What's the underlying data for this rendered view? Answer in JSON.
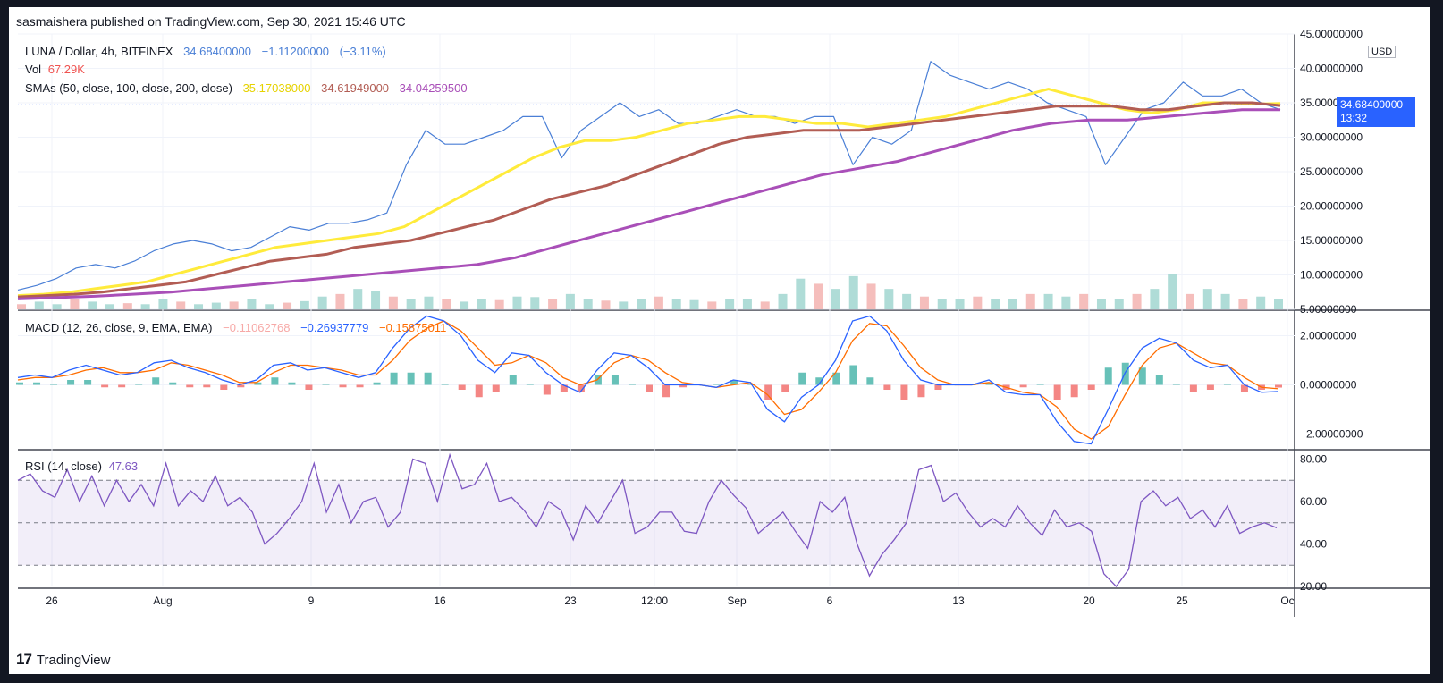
{
  "header": {
    "published": "sasmaishera published on TradingView.com, Sep 30, 2021 15:46 UTC"
  },
  "footer": {
    "brand": "TradingView",
    "brand_mark": "17"
  },
  "main": {
    "symbol": "LUNA / Dollar, 4h, BITFINEX",
    "last": "34.68400000",
    "change": "−1.11200000",
    "change_pct": "(−3.11%)",
    "vol_label": "Vol",
    "vol_value": "67.29K",
    "sma_label": "SMAs (50, close, 100, close, 200, close)",
    "sma50": "35.17038000",
    "sma100": "34.61949000",
    "sma200": "34.04259500",
    "price_tag": "34.68400000",
    "price_tag_time": "13:32",
    "currency": "USD"
  },
  "macd": {
    "label": "MACD (12, 26, close, 9, EMA, EMA)",
    "hist": "−0.11062768",
    "macd": "−0.26937779",
    "signal": "−0.15875011"
  },
  "rsi": {
    "label": "RSI (14, close)",
    "value": "47.63"
  },
  "colors": {
    "price": "#4a7fd6",
    "sma50": "#ffeb3b",
    "sma100": "#b25d54",
    "sma200": "#a94fb8",
    "macd": "#2962ff",
    "signal": "#ff6d00",
    "rsi": "#7e57c2",
    "up": "#26a69a",
    "down": "#ef5350"
  },
  "chart_data": [
    {
      "type": "line",
      "name": "price",
      "x_ticks": [
        "26",
        "Aug",
        "9",
        "16",
        "23",
        "12:00",
        "Sep",
        "6",
        "13",
        "20",
        "25",
        "Oc"
      ],
      "y_ticks": [
        "45.00000000",
        "40.00000000",
        "35.00000000",
        "30.00000000",
        "25.00000000",
        "20.00000000",
        "15.00000000",
        "10.00000000",
        "5.00000000"
      ],
      "ylim": [
        5,
        45
      ],
      "series": [
        {
          "name": "LUNA / Dollar",
          "values": [
            7.8,
            8.5,
            9.5,
            11,
            11.5,
            11,
            12,
            13.5,
            14.5,
            15,
            14.5,
            13.5,
            14,
            15.5,
            17,
            16.5,
            17.5,
            17.5,
            18,
            19,
            26,
            31,
            29,
            29,
            30,
            31,
            33,
            33,
            27,
            31,
            33,
            35,
            33,
            34,
            32,
            32,
            33,
            34,
            33,
            33,
            32,
            33,
            33,
            26,
            30,
            29,
            31,
            41,
            39,
            38,
            37,
            38,
            37,
            35,
            34,
            33,
            26,
            30,
            34,
            35,
            38,
            36,
            36,
            37,
            35,
            34
          ]
        },
        {
          "name": "SMA 50",
          "values": [
            7,
            7.2,
            7.5,
            8,
            8.5,
            9,
            10,
            11,
            12,
            13,
            14,
            14.5,
            15,
            15.5,
            16,
            17,
            19,
            21,
            23,
            25,
            27,
            28.5,
            29.5,
            29.5,
            30,
            31,
            32,
            32.5,
            33,
            33,
            32.5,
            32,
            32,
            31.5,
            32,
            32.5,
            33,
            34,
            35,
            36,
            37,
            36,
            35,
            34,
            33.5,
            34,
            35,
            35,
            34.8,
            34.9
          ]
        },
        {
          "name": "SMA 100",
          "values": [
            6.8,
            7,
            7.2,
            7.5,
            8,
            8.5,
            9,
            10,
            11,
            12,
            12.5,
            13,
            14,
            14.5,
            15,
            16,
            17,
            18,
            19.5,
            21,
            22,
            23,
            24.5,
            26,
            27.5,
            29,
            30,
            30.5,
            31,
            31,
            31,
            31.5,
            32,
            32.5,
            33,
            33.5,
            34,
            34.5,
            34.5,
            34.5,
            34,
            34,
            34.5,
            35,
            35,
            34.6
          ]
        },
        {
          "name": "SMA 200",
          "values": [
            6.5,
            6.7,
            6.9,
            7.2,
            7.5,
            8,
            8.5,
            9,
            9.5,
            10,
            10.5,
            11,
            11.5,
            12.5,
            14,
            15.5,
            17,
            18.5,
            20,
            21.5,
            23,
            24.5,
            25.5,
            26.5,
            28,
            29.5,
            31,
            32,
            32.5,
            32.5,
            33,
            33.5,
            34,
            34
          ]
        }
      ]
    },
    {
      "type": "line",
      "name": "MACD",
      "y_ticks": [
        "2.00000000",
        "0.00000000",
        "−2.00000000"
      ],
      "ylim": [
        -2.6,
        3
      ],
      "series": [
        {
          "name": "MACD",
          "values": [
            0.3,
            0.4,
            0.3,
            0.6,
            0.8,
            0.6,
            0.4,
            0.5,
            0.9,
            1,
            0.7,
            0.5,
            0.2,
            0,
            0.2,
            0.8,
            0.9,
            0.6,
            0.7,
            0.5,
            0.3,
            0.5,
            1.5,
            2.3,
            2.8,
            2.6,
            2,
            1,
            0.5,
            1.3,
            1.2,
            0.5,
            0,
            -0.3,
            0.6,
            1.3,
            1.2,
            0.7,
            0,
            0,
            0,
            -0.1,
            0.2,
            0.1,
            -1,
            -1.5,
            -0.5,
            0,
            1,
            2.6,
            2.8,
            2.2,
            1,
            0.2,
            0,
            0,
            0,
            0.2,
            -0.3,
            -0.4,
            -0.4,
            -1.5,
            -2.3,
            -2.4,
            -1,
            0.5,
            1.5,
            1.9,
            1.7,
            1,
            0.7,
            0.8,
            0,
            -0.3,
            -0.27
          ]
        },
        {
          "name": "Signal",
          "values": [
            0.2,
            0.3,
            0.3,
            0.4,
            0.6,
            0.7,
            0.5,
            0.5,
            0.6,
            0.9,
            0.8,
            0.6,
            0.4,
            0.1,
            0.1,
            0.5,
            0.8,
            0.8,
            0.7,
            0.6,
            0.4,
            0.4,
            1,
            1.8,
            2.3,
            2.6,
            2.2,
            1.5,
            0.8,
            0.9,
            1.2,
            0.9,
            0.3,
            0,
            0.2,
            0.9,
            1.2,
            1,
            0.5,
            0.1,
            0,
            -0.1,
            0,
            0.1,
            -0.4,
            -1.2,
            -1,
            -0.3,
            0.5,
            1.8,
            2.5,
            2.4,
            1.6,
            0.7,
            0.2,
            0,
            0,
            0.1,
            -0.1,
            -0.3,
            -0.4,
            -0.9,
            -1.8,
            -2.2,
            -1.7,
            -0.4,
            0.8,
            1.5,
            1.7,
            1.3,
            0.9,
            0.8,
            0.3,
            -0.1,
            -0.16
          ]
        },
        {
          "name": "Histogram",
          "values": [
            0.1,
            0.1,
            0,
            0.2,
            0.2,
            -0.1,
            -0.1,
            0,
            0.3,
            0.1,
            -0.1,
            -0.1,
            -0.2,
            -0.1,
            0.1,
            0.3,
            0.1,
            -0.2,
            0,
            -0.1,
            -0.1,
            0.1,
            0.5,
            0.5,
            0.5,
            0,
            -0.2,
            -0.5,
            -0.3,
            0.4,
            0,
            -0.4,
            -0.3,
            -0.3,
            0.4,
            0.4,
            0,
            -0.3,
            -0.5,
            -0.1,
            0,
            0,
            0.2,
            0,
            -0.6,
            -0.3,
            0.5,
            0.3,
            0.5,
            0.8,
            0.3,
            -0.2,
            -0.6,
            -0.5,
            -0.2,
            0,
            0,
            0.1,
            -0.2,
            -0.1,
            0,
            -0.6,
            -0.5,
            -0.2,
            0.7,
            0.9,
            0.7,
            0.4,
            0,
            -0.3,
            -0.2,
            0,
            -0.3,
            -0.2,
            -0.11
          ]
        }
      ]
    },
    {
      "type": "line",
      "name": "RSI",
      "y_ticks": [
        "80.00",
        "60.00",
        "40.00",
        "20.00"
      ],
      "ylim": [
        20,
        84
      ],
      "levels": [
        70,
        50,
        30
      ],
      "series": [
        {
          "name": "RSI",
          "values": [
            70,
            73,
            65,
            62,
            75,
            60,
            72,
            58,
            70,
            60,
            68,
            58,
            78,
            58,
            65,
            60,
            72,
            58,
            62,
            55,
            40,
            45,
            52,
            60,
            78,
            55,
            68,
            50,
            60,
            62,
            48,
            55,
            80,
            78,
            60,
            82,
            66,
            68,
            78,
            60,
            62,
            56,
            48,
            60,
            56,
            42,
            58,
            50,
            60,
            70,
            45,
            48,
            55,
            55,
            46,
            45,
            60,
            70,
            63,
            57,
            45,
            50,
            55,
            46,
            38,
            60,
            55,
            62,
            40,
            25,
            35,
            42,
            50,
            75,
            77,
            60,
            64,
            55,
            48,
            52,
            48,
            58,
            50,
            44,
            56,
            48,
            50,
            46,
            26,
            20,
            28,
            60,
            65,
            58,
            62,
            52,
            56,
            48,
            58,
            45,
            48,
            50,
            47.63
          ]
        }
      ]
    },
    {
      "type": "bar",
      "name": "Volume",
      "values": [
        1,
        1.5,
        1,
        2,
        1.5,
        1,
        1.2,
        1,
        2,
        1.5,
        1,
        1.3,
        1.5,
        2,
        1,
        1.3,
        1.6,
        2.5,
        3,
        4,
        3.5,
        2.5,
        2,
        2.5,
        2,
        1.5,
        2,
        1.8,
        2.5,
        2.4,
        2,
        3,
        2,
        1.7,
        1.5,
        2,
        2.5,
        2,
        1.8,
        1.5,
        2,
        2,
        1.5,
        3,
        6,
        5,
        4,
        6.5,
        5,
        4,
        3,
        2.5,
        2,
        2,
        2.5,
        2,
        2,
        3,
        3,
        2.5,
        3,
        2,
        2,
        3,
        4,
        7,
        3,
        4,
        3,
        2,
        2.5,
        2
      ]
    }
  ]
}
